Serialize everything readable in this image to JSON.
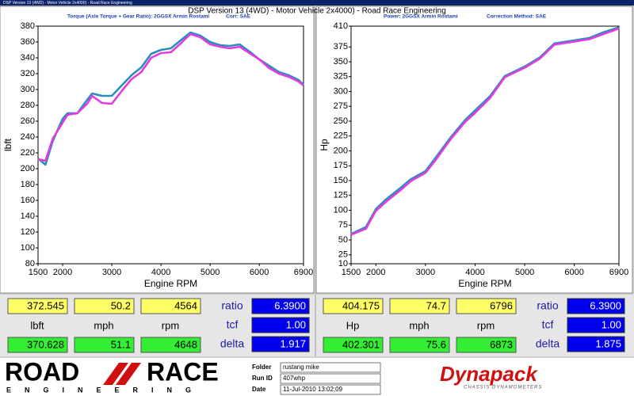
{
  "window": {
    "title": "DSP Version 13 (4WD) - Motor Vehicle 2x4000) - Road Race Engineering"
  },
  "header": {
    "title": "DSP Version 13 (4WD) - Motor Vehicle 2x4000) - Road Race Engineering"
  },
  "chart_data": [
    {
      "type": "line",
      "subtitle": "Torque (Axle Torque + Gear Ratio): 2GGSX Armin Rostami",
      "note": "Corr: SAE",
      "xlabel": "Engine RPM",
      "ylabel": "lbft",
      "x": [
        1500,
        1650,
        1800,
        2000,
        2100,
        2300,
        2500,
        2600,
        2800,
        3000,
        3200,
        3400,
        3600,
        3800,
        4000,
        4200,
        4400,
        4600,
        4800,
        5000,
        5200,
        5400,
        5600,
        5800,
        6000,
        6200,
        6400,
        6600,
        6800,
        6900
      ],
      "xlim": [
        1500,
        6900
      ],
      "xticks": [
        1500,
        2000,
        3000,
        4000,
        5000,
        6000,
        6900
      ],
      "ylim": [
        80,
        380
      ],
      "yticks": [
        80,
        100,
        120,
        140,
        160,
        180,
        200,
        220,
        240,
        260,
        280,
        300,
        320,
        340,
        360,
        380
      ],
      "grid": false,
      "series": [
        {
          "color": "#2a8fb8",
          "values": [
            213,
            205,
            235,
            263,
            270,
            270,
            287,
            295,
            292,
            292,
            305,
            318,
            328,
            345,
            350,
            352,
            362,
            372,
            368,
            360,
            356,
            355,
            357,
            348,
            338,
            330,
            322,
            318,
            312,
            306
          ]
        },
        {
          "color": "#e33be0",
          "values": [
            212,
            210,
            238,
            258,
            268,
            270,
            282,
            292,
            283,
            282,
            298,
            313,
            322,
            340,
            346,
            347,
            358,
            370,
            366,
            357,
            354,
            352,
            354,
            346,
            338,
            327,
            320,
            316,
            310,
            305
          ]
        }
      ]
    },
    {
      "type": "line",
      "subtitle": "Power: 2GGSX Armin Rostami",
      "note": "Correction Method: SAE",
      "xlabel": "Engine RPM",
      "ylabel": "Hp",
      "x": [
        1500,
        1800,
        2000,
        2200,
        2500,
        2700,
        3000,
        3200,
        3500,
        3800,
        4000,
        4300,
        4600,
        5000,
        5300,
        5600,
        6000,
        6300,
        6600,
        6900
      ],
      "xlim": [
        1500,
        6900
      ],
      "xticks": [
        1500,
        2000,
        3000,
        4000,
        5000,
        6000,
        6900
      ],
      "ylim": [
        10,
        410
      ],
      "yticks": [
        10,
        25,
        50,
        75,
        100,
        125,
        150,
        175,
        200,
        225,
        250,
        275,
        300,
        325,
        350,
        375,
        410
      ],
      "grid": false,
      "series": [
        {
          "color": "#2a8fb8",
          "values": [
            60,
            72,
            102,
            118,
            138,
            152,
            166,
            188,
            222,
            252,
            268,
            292,
            326,
            342,
            357,
            381,
            386,
            390,
            400,
            408
          ]
        },
        {
          "color": "#e33be0",
          "values": [
            59,
            69,
            99,
            114,
            134,
            149,
            163,
            184,
            219,
            249,
            264,
            289,
            324,
            340,
            355,
            379,
            384,
            388,
            397,
            406
          ]
        }
      ]
    }
  ],
  "readouts": [
    {
      "top": [
        "372.545",
        "50.2",
        "4564"
      ],
      "labels": [
        "lbft",
        "mph",
        "rpm"
      ],
      "bottom": [
        "370.628",
        "51.1",
        "4648"
      ],
      "param_names": [
        "ratio",
        "tcf",
        "delta"
      ],
      "param_values": [
        "6.3900",
        "1.00",
        "1.917"
      ]
    },
    {
      "top": [
        "404.175",
        "74.7",
        "6796"
      ],
      "labels": [
        "Hp",
        "mph",
        "rpm"
      ],
      "bottom": [
        "402.301",
        "75.6",
        "6873"
      ],
      "param_names": [
        "ratio",
        "tcf",
        "delta"
      ],
      "param_values": [
        "6.3900",
        "1.00",
        "1.875"
      ]
    }
  ],
  "footer": {
    "logo_left": "ROAD",
    "logo_right": "RACE",
    "logo_sub": "ENGINEERING",
    "fields": [
      {
        "label": "Folder",
        "value": "rustang mike"
      },
      {
        "label": "Run ID",
        "value": "407whp"
      },
      {
        "label": "Date",
        "value": "11-Jul-2010 13:02:09"
      }
    ],
    "brand": "Dynapack",
    "brand_sub": "CHASSIS DYNAMOMETERS"
  }
}
